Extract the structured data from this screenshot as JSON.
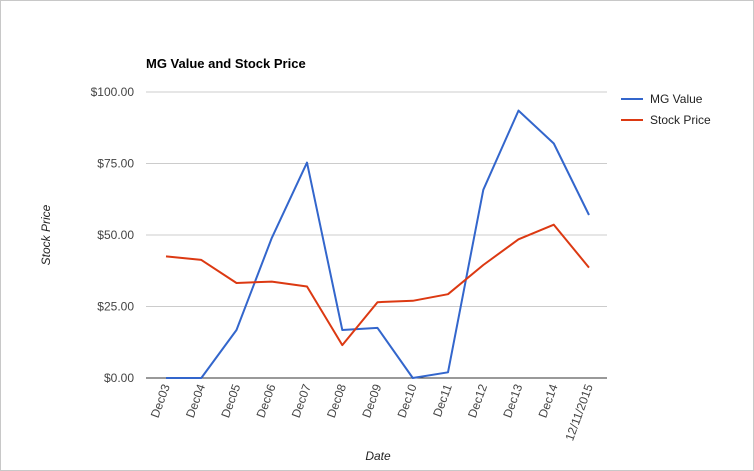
{
  "chart_data": {
    "type": "line",
    "title": "MG Value and Stock Price",
    "xlabel": "Date",
    "ylabel": "Stock Price",
    "categories": [
      "Dec03",
      "Dec04",
      "Dec05",
      "Dec06",
      "Dec07",
      "Dec08",
      "Dec09",
      "Dec10",
      "Dec11",
      "Dec12",
      "Dec13",
      "Dec14",
      "12/11/2015"
    ],
    "ylim": [
      0,
      100
    ],
    "yticks": [
      0,
      25,
      50,
      75,
      100
    ],
    "ytick_labels": [
      "$0.00",
      "$25.00",
      "$50.00",
      "$75.00",
      "$100.00"
    ],
    "grid": true,
    "legend_position": "right",
    "series": [
      {
        "name": "MG Value",
        "color": "#3366cc",
        "values": [
          0,
          0,
          16.8,
          49,
          75.3,
          16.8,
          17.5,
          0,
          2,
          65.8,
          93.5,
          82,
          57
        ]
      },
      {
        "name": "Stock Price",
        "color": "#dc3912",
        "values": [
          42.5,
          41.3,
          33.2,
          33.7,
          32,
          11.5,
          26.5,
          27,
          29.3,
          39.5,
          48.5,
          53.6,
          38.6
        ]
      }
    ]
  }
}
